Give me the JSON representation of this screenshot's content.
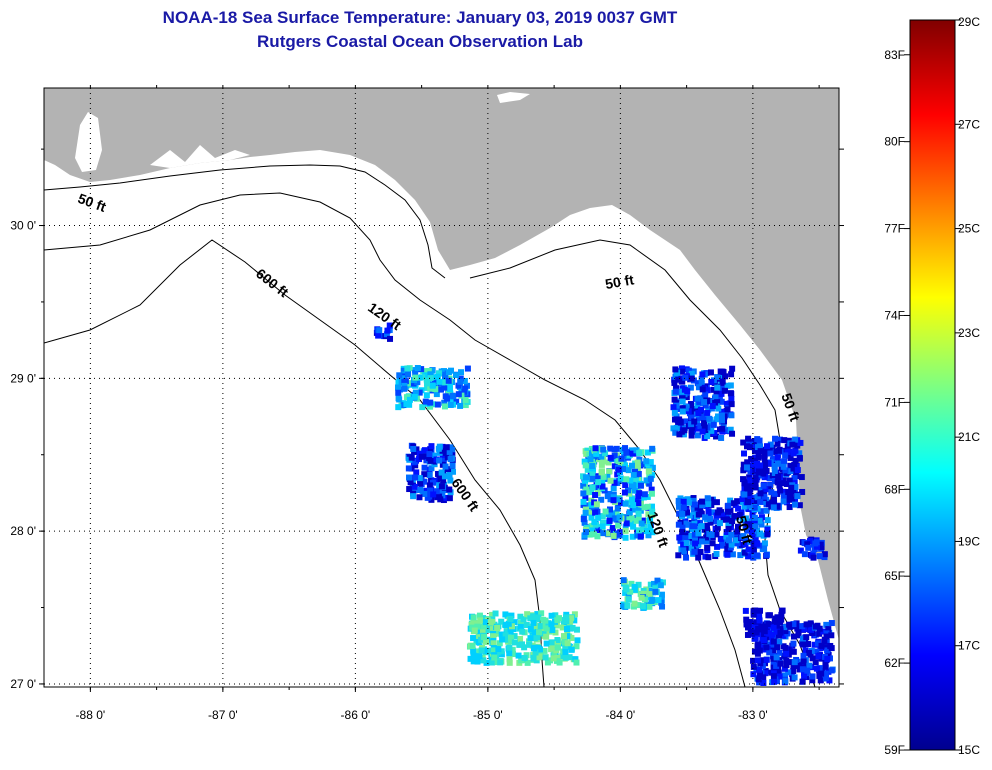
{
  "header": {
    "title": "NOAA-18 Sea Surface Temperature:  January 03, 2019 0037 GMT",
    "subtitle": "Rutgers Coastal Ocean Observation Lab"
  },
  "map": {
    "lon_range": [
      -88.35,
      -82.35
    ],
    "lat_range": [
      26.98,
      30.9
    ],
    "lon_ticks": [
      {
        "value": -88,
        "label": "-88 0'"
      },
      {
        "value": -87,
        "label": "-87 0'"
      },
      {
        "value": -86,
        "label": "-86 0'"
      },
      {
        "value": -85,
        "label": "-85 0'"
      },
      {
        "value": -84,
        "label": "-84 0'"
      },
      {
        "value": -83,
        "label": "-83 0'"
      }
    ],
    "lat_ticks": [
      {
        "value": 30,
        "label": "30 0'"
      },
      {
        "value": 29,
        "label": "29 0'"
      },
      {
        "value": 28,
        "label": "28 0'"
      },
      {
        "value": 27,
        "label": "27 0'"
      }
    ],
    "land_color": "#b3b3b3",
    "ocean_color": "#ffffff",
    "contour_labels": [
      {
        "text": "50 ft",
        "lon": -88.0,
        "lat": 30.12,
        "angle": 20
      },
      {
        "text": "600 ft",
        "lon": -86.65,
        "lat": 29.6,
        "angle": 38
      },
      {
        "text": "120 ft",
        "lon": -85.8,
        "lat": 29.38,
        "angle": 35
      },
      {
        "text": "50 ft",
        "lon": -84.0,
        "lat": 29.6,
        "angle": -10
      },
      {
        "text": "600 ft",
        "lon": -85.2,
        "lat": 28.22,
        "angle": 55
      },
      {
        "text": "120 ft",
        "lon": -83.75,
        "lat": 28.0,
        "angle": 70
      },
      {
        "text": "50 ft",
        "lon": -83.1,
        "lat": 28.0,
        "angle": 75
      },
      {
        "text": "50 ft",
        "lon": -82.75,
        "lat": 28.8,
        "angle": 70
      }
    ]
  },
  "colorbar": {
    "celsius_ticks": [
      "29C",
      "27C",
      "25C",
      "23C",
      "21C",
      "19C",
      "17C",
      "15C"
    ],
    "fahrenheit_ticks": [
      "83F",
      "80F",
      "77F",
      "74F",
      "71F",
      "68F",
      "65F",
      "62F",
      "59F"
    ],
    "range_c": [
      15,
      29
    ],
    "colors": [
      "#00008f",
      "#0000ff",
      "#00ffff",
      "#ffff00",
      "#ff0000",
      "#800000"
    ]
  }
}
